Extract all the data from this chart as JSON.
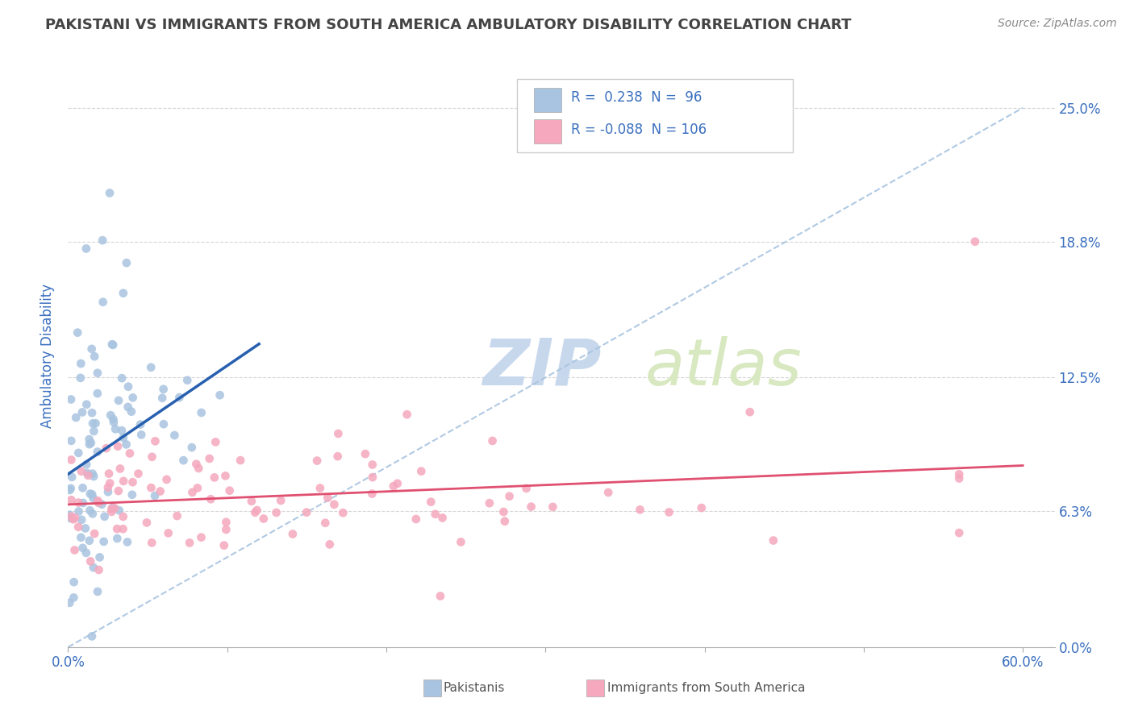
{
  "title": "PAKISTANI VS IMMIGRANTS FROM SOUTH AMERICA AMBULATORY DISABILITY CORRELATION CHART",
  "source": "Source: ZipAtlas.com",
  "ylabel": "Ambulatory Disability",
  "ytick_values": [
    0.0,
    6.3,
    12.5,
    18.8,
    25.0
  ],
  "xtick_values": [
    0.0,
    10.0,
    20.0,
    30.0,
    40.0,
    50.0,
    60.0
  ],
  "xlim": [
    0,
    62
  ],
  "ylim": [
    0,
    27
  ],
  "pakistani_R": 0.238,
  "pakistani_N": 96,
  "southamerica_R": -0.088,
  "southamerica_N": 106,
  "scatter_blue_color": "#a8c4e0",
  "scatter_pink_color": "#f5a8be",
  "trendline_blue_color": "#2860b0",
  "trendline_pink_color": "#e05070",
  "dashed_line_color": "#a8c4e0",
  "text_color": "#3a6fbf",
  "title_color": "#444444",
  "watermark_zip_color": "#c8d8ec",
  "watermark_atlas_color": "#d8e8c0",
  "grid_color": "#cccccc",
  "background_color": "#ffffff",
  "legend_border_color": "#cccccc",
  "bottom_legend_label_color": "#555555"
}
